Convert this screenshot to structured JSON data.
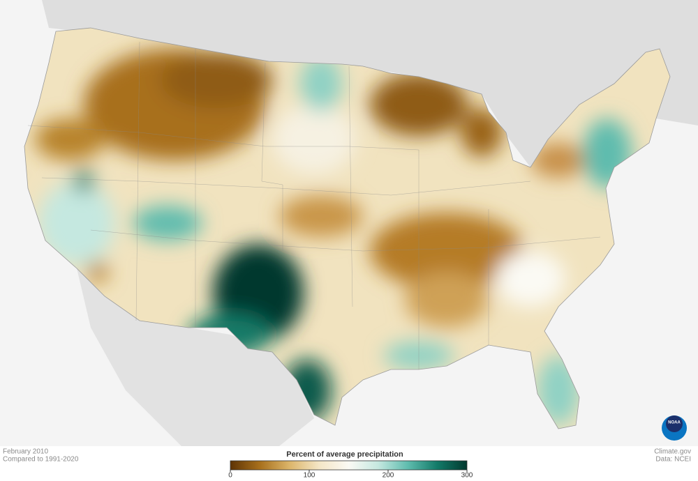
{
  "map": {
    "date": "February 2010",
    "baseline": "Compared to 1991-2020",
    "credit": "Climate.gov",
    "source": "Data: NCEI",
    "logo": "NOAA"
  },
  "colorbar": {
    "title": "Percent of average precipitation",
    "lim": [
      0,
      300
    ],
    "ticks": [
      0,
      100,
      200,
      300
    ],
    "colors": [
      "#5e3305",
      "#a8701c",
      "#dcb56a",
      "#f4e6c6",
      "#fbfaf4",
      "#c5e8e0",
      "#5fbcae",
      "#127a68",
      "#02392f"
    ]
  }
}
